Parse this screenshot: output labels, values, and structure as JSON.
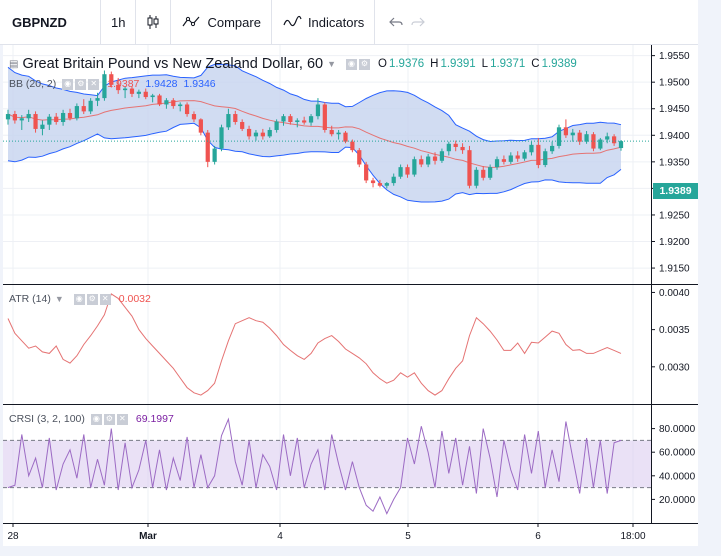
{
  "toolbar": {
    "symbol": "GBPNZD",
    "interval": "1h",
    "compare_label": "Compare",
    "indicators_label": "Indicators"
  },
  "colors": {
    "up": "#26a69a",
    "down": "#ef5350",
    "bb_line": "#2962ff",
    "bb_fill": "#c5d3ef",
    "ma_line": "#e57373",
    "crsi_line": "#9c6bc4",
    "crsi_band": "#d9c8ee"
  },
  "main_pane": {
    "title": "Great Britain Pound vs New Zealand Dollar, 60",
    "ohlc": {
      "o_label": "O",
      "o_value": "1.9376",
      "h_label": "H",
      "h_value": "1.9391",
      "l_label": "L",
      "l_value": "1.9371",
      "c_label": "C",
      "c_value": "1.9389"
    },
    "bb_label": "BB (20, 2)",
    "bb_values": [
      "1.9387",
      "1.9428",
      "1.9346"
    ],
    "last_price": "1.9389",
    "price_ticks": [
      "1.9550",
      "1.9500",
      "1.9450",
      "1.9400",
      "1.9350",
      "1.9300",
      "1.9250",
      "1.9200",
      "1.9150"
    ]
  },
  "atr_pane": {
    "label": "ATR (14)",
    "value": "0.0032",
    "ticks": [
      "0.0040",
      "0.0035",
      "0.0030"
    ]
  },
  "crsi_pane": {
    "label": "CRSI (3, 2, 100)",
    "value": "69.1997",
    "ticks": [
      "80.0000",
      "60.0000",
      "40.0000",
      "20.0000"
    ]
  },
  "time_axis": {
    "labels": [
      "28",
      "Mar",
      "4",
      "5",
      "6",
      "18:00"
    ]
  },
  "chart_data": [
    {
      "type": "candlestick",
      "title": "Great Britain Pound vs New Zealand Dollar, 60",
      "ylim": [
        1.912,
        1.957
      ],
      "candles": [
        [
          1.943,
          1.9448,
          1.942,
          1.944
        ],
        [
          1.944,
          1.9446,
          1.9422,
          1.9428
        ],
        [
          1.9428,
          1.9438,
          1.941,
          1.9432
        ],
        [
          1.9432,
          1.9448,
          1.9425,
          1.944
        ],
        [
          1.944,
          1.9445,
          1.9405,
          1.9412
        ],
        [
          1.9412,
          1.9428,
          1.94,
          1.942
        ],
        [
          1.942,
          1.944,
          1.941,
          1.9435
        ],
        [
          1.9435,
          1.9442,
          1.942,
          1.9425
        ],
        [
          1.9425,
          1.9448,
          1.9418,
          1.9442
        ],
        [
          1.9442,
          1.945,
          1.9428,
          1.9432
        ],
        [
          1.9432,
          1.946,
          1.9428,
          1.9455
        ],
        [
          1.9455,
          1.9468,
          1.944,
          1.9445
        ],
        [
          1.9445,
          1.947,
          1.944,
          1.9465
        ],
        [
          1.9465,
          1.948,
          1.9455,
          1.947
        ],
        [
          1.947,
          1.9522,
          1.9465,
          1.9515
        ],
        [
          1.9515,
          1.952,
          1.949,
          1.9495
        ],
        [
          1.9495,
          1.9508,
          1.9478,
          1.9485
        ],
        [
          1.9485,
          1.9492,
          1.947,
          1.9488
        ],
        [
          1.9488,
          1.9492,
          1.9472,
          1.9478
        ],
        [
          1.9478,
          1.9486,
          1.947,
          1.9482
        ],
        [
          1.9482,
          1.9488,
          1.9468,
          1.9472
        ],
        [
          1.9472,
          1.9478,
          1.9462,
          1.9475
        ],
        [
          1.9475,
          1.9478,
          1.9455,
          1.9458
        ],
        [
          1.9458,
          1.947,
          1.945,
          1.9466
        ],
        [
          1.9466,
          1.947,
          1.945,
          1.9455
        ],
        [
          1.9455,
          1.9462,
          1.9445,
          1.9458
        ],
        [
          1.9458,
          1.9462,
          1.9435,
          1.944
        ],
        [
          1.944,
          1.9445,
          1.9425,
          1.943
        ],
        [
          1.943,
          1.9432,
          1.94,
          1.9405
        ],
        [
          1.9405,
          1.941,
          1.934,
          1.935
        ],
        [
          1.935,
          1.938,
          1.9345,
          1.9375
        ],
        [
          1.9375,
          1.942,
          1.937,
          1.9415
        ],
        [
          1.9415,
          1.945,
          1.941,
          1.944
        ],
        [
          1.944,
          1.9446,
          1.942,
          1.9425
        ],
        [
          1.9425,
          1.943,
          1.9408,
          1.9412
        ],
        [
          1.9412,
          1.9418,
          1.9392,
          1.9398
        ],
        [
          1.9398,
          1.941,
          1.939,
          1.9405
        ],
        [
          1.9405,
          1.9412,
          1.9392,
          1.9398
        ],
        [
          1.9398,
          1.9415,
          1.9395,
          1.941
        ],
        [
          1.941,
          1.943,
          1.9405,
          1.9426
        ],
        [
          1.9426,
          1.944,
          1.9418,
          1.9436
        ],
        [
          1.9436,
          1.944,
          1.942,
          1.9425
        ],
        [
          1.9425,
          1.9432,
          1.9415,
          1.9428
        ],
        [
          1.9428,
          1.9435,
          1.942,
          1.9424
        ],
        [
          1.9424,
          1.944,
          1.9418,
          1.9436
        ],
        [
          1.9436,
          1.947,
          1.943,
          1.9458
        ],
        [
          1.9458,
          1.9462,
          1.9405,
          1.941
        ],
        [
          1.941,
          1.9418,
          1.9398,
          1.9402
        ],
        [
          1.9402,
          1.941,
          1.9392,
          1.9405
        ],
        [
          1.9405,
          1.9408,
          1.9385,
          1.9388
        ],
        [
          1.9388,
          1.9392,
          1.9368,
          1.9372
        ],
        [
          1.9372,
          1.9376,
          1.934,
          1.9345
        ],
        [
          1.9345,
          1.935,
          1.931,
          1.9315
        ],
        [
          1.9315,
          1.932,
          1.9302,
          1.931
        ],
        [
          1.931,
          1.9316,
          1.9302,
          1.9305
        ],
        [
          1.9305,
          1.9312,
          1.93,
          1.931
        ],
        [
          1.931,
          1.9328,
          1.9305,
          1.9322
        ],
        [
          1.9322,
          1.9345,
          1.9318,
          1.934
        ],
        [
          1.934,
          1.9345,
          1.932,
          1.9326
        ],
        [
          1.9326,
          1.936,
          1.9322,
          1.9355
        ],
        [
          1.9355,
          1.9362,
          1.934,
          1.9345
        ],
        [
          1.9345,
          1.9365,
          1.934,
          1.936
        ],
        [
          1.936,
          1.9368,
          1.9345,
          1.9352
        ],
        [
          1.9352,
          1.9375,
          1.9348,
          1.937
        ],
        [
          1.937,
          1.9388,
          1.9362,
          1.9384
        ],
        [
          1.9384,
          1.939,
          1.937,
          1.9378
        ],
        [
          1.9378,
          1.9385,
          1.9365,
          1.9372
        ],
        [
          1.9372,
          1.938,
          1.93,
          1.9305
        ],
        [
          1.9305,
          1.934,
          1.93,
          1.9335
        ],
        [
          1.9335,
          1.9342,
          1.9315,
          1.932
        ],
        [
          1.932,
          1.9345,
          1.9316,
          1.934
        ],
        [
          1.934,
          1.936,
          1.9335,
          1.9355
        ],
        [
          1.9355,
          1.9362,
          1.9345,
          1.935
        ],
        [
          1.935,
          1.9368,
          1.9346,
          1.9362
        ],
        [
          1.9362,
          1.937,
          1.935,
          1.9356
        ],
        [
          1.9356,
          1.9372,
          1.9352,
          1.9368
        ],
        [
          1.9368,
          1.9388,
          1.9362,
          1.9382
        ],
        [
          1.9382,
          1.9395,
          1.9338,
          1.9344
        ],
        [
          1.9344,
          1.9375,
          1.934,
          1.937
        ],
        [
          1.937,
          1.9388,
          1.9365,
          1.938
        ],
        [
          1.938,
          1.942,
          1.9375,
          1.9415
        ],
        [
          1.9415,
          1.943,
          1.9395,
          1.94
        ],
        [
          1.94,
          1.9412,
          1.9388,
          1.9405
        ],
        [
          1.9405,
          1.941,
          1.9382,
          1.9388
        ],
        [
          1.9388,
          1.9408,
          1.9384,
          1.9402
        ],
        [
          1.9402,
          1.9406,
          1.937,
          1.9375
        ],
        [
          1.9375,
          1.9395,
          1.9372,
          1.9392
        ],
        [
          1.9392,
          1.9405,
          1.9385,
          1.9398
        ],
        [
          1.9398,
          1.9402,
          1.938,
          1.9385
        ],
        [
          1.9376,
          1.9391,
          1.9371,
          1.9389
        ]
      ]
    },
    {
      "type": "line",
      "name": "ATR (14)",
      "ylim": [
        0.0025,
        0.0041
      ],
      "values": [
        0.00365,
        0.00345,
        0.00335,
        0.00325,
        0.00328,
        0.0032,
        0.00318,
        0.00328,
        0.0031,
        0.00305,
        0.00315,
        0.0033,
        0.00342,
        0.00355,
        0.0037,
        0.00398,
        0.00392,
        0.0038,
        0.00368,
        0.0035,
        0.00338,
        0.00328,
        0.00318,
        0.00308,
        0.00298,
        0.00285,
        0.00272,
        0.00265,
        0.00262,
        0.00268,
        0.00278,
        0.00308,
        0.00335,
        0.00358,
        0.00362,
        0.00366,
        0.00362,
        0.0036,
        0.00352,
        0.00342,
        0.0033,
        0.00322,
        0.00315,
        0.0031,
        0.00318,
        0.00332,
        0.00338,
        0.00342,
        0.00334,
        0.00324,
        0.00318,
        0.00312,
        0.00304,
        0.00292,
        0.00284,
        0.00278,
        0.00282,
        0.00292,
        0.00286,
        0.00292,
        0.00278,
        0.00268,
        0.00262,
        0.00268,
        0.00284,
        0.00298,
        0.00308,
        0.00342,
        0.00366,
        0.00358,
        0.00348,
        0.00336,
        0.00322,
        0.00322,
        0.00332,
        0.00318,
        0.00333,
        0.00332,
        0.0034,
        0.00348,
        0.00345,
        0.0033,
        0.00322,
        0.00323,
        0.00318,
        0.00318,
        0.00322,
        0.00326,
        0.00322,
        0.00318
      ]
    },
    {
      "type": "line",
      "name": "CRSI (3, 2, 100)",
      "ylim": [
        0,
        100
      ],
      "band": [
        30,
        70
      ],
      "values": [
        30,
        32,
        75,
        40,
        55,
        30,
        72,
        28,
        50,
        62,
        38,
        75,
        30,
        54,
        32,
        80,
        28,
        68,
        30,
        45,
        70,
        30,
        62,
        28,
        55,
        36,
        73,
        30,
        58,
        30,
        40,
        74,
        88,
        52,
        32,
        70,
        30,
        58,
        48,
        28,
        75,
        40,
        72,
        30,
        50,
        62,
        28,
        75,
        50,
        28,
        52,
        30,
        15,
        10,
        22,
        8,
        20,
        30,
        72,
        50,
        82,
        60,
        30,
        78,
        42,
        72,
        32,
        65,
        25,
        80,
        55,
        22,
        70,
        45,
        28,
        75,
        42,
        78,
        30,
        62,
        35,
        86,
        55,
        25,
        72,
        30,
        70,
        25,
        68,
        70
      ]
    }
  ]
}
